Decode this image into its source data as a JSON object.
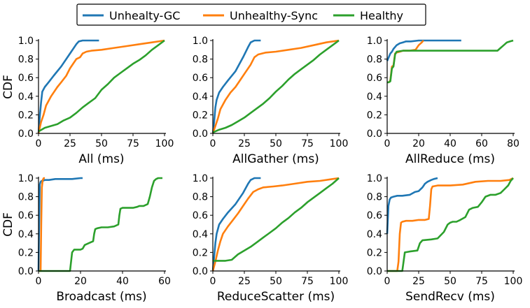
{
  "legend": [
    {
      "name": "Unhealty-GC",
      "color": "#1f77b4"
    },
    {
      "name": "Unhealthy-Sync",
      "color": "#ff7f0e"
    },
    {
      "name": "Healthy",
      "color": "#2ca02c"
    }
  ],
  "chart_data": [
    {
      "type": "line",
      "title": "",
      "xlabel": "All (ms)",
      "ylabel": "CDF",
      "xlim": [
        0,
        100
      ],
      "ylim": [
        0,
        1
      ],
      "xticks": [
        0,
        25,
        50,
        75,
        100
      ],
      "yticks": [
        0.0,
        0.2,
        0.4,
        0.6,
        0.8,
        1.0
      ],
      "show_ylabel": true,
      "series": [
        {
          "name": "Unhealty-GC",
          "x": [
            0,
            1,
            2,
            3,
            5,
            8,
            12,
            18,
            25,
            30,
            32,
            35,
            40,
            48
          ],
          "y": [
            0,
            0.18,
            0.33,
            0.45,
            0.5,
            0.55,
            0.62,
            0.72,
            0.86,
            0.96,
            0.99,
            1.0,
            1.0,
            1.0
          ]
        },
        {
          "name": "Unhealthy-Sync",
          "x": [
            0,
            2,
            4,
            6,
            10,
            15,
            18,
            22,
            25,
            28,
            30,
            33,
            35,
            38,
            42,
            50,
            60,
            70,
            80,
            90,
            100
          ],
          "y": [
            0,
            0.12,
            0.2,
            0.3,
            0.4,
            0.5,
            0.55,
            0.62,
            0.7,
            0.76,
            0.8,
            0.82,
            0.86,
            0.88,
            0.89,
            0.9,
            0.92,
            0.94,
            0.96,
            0.98,
            1.0
          ]
        },
        {
          "name": "Healthy",
          "x": [
            0,
            5,
            10,
            15,
            20,
            25,
            30,
            35,
            40,
            45,
            50,
            55,
            60,
            65,
            70,
            75,
            80,
            85,
            90,
            95,
            100
          ],
          "y": [
            0.02,
            0.06,
            0.08,
            0.1,
            0.14,
            0.17,
            0.22,
            0.28,
            0.33,
            0.38,
            0.47,
            0.53,
            0.6,
            0.65,
            0.7,
            0.75,
            0.79,
            0.84,
            0.9,
            0.95,
            1.0
          ]
        }
      ]
    },
    {
      "type": "line",
      "title": "",
      "xlabel": "AllGather (ms)",
      "ylabel": "CDF",
      "xlim": [
        0,
        100
      ],
      "ylim": [
        0,
        1
      ],
      "xticks": [
        0,
        25,
        50,
        75,
        100
      ],
      "yticks": [
        0.0,
        0.2,
        0.4,
        0.6,
        0.8,
        1.0
      ],
      "show_ylabel": false,
      "series": [
        {
          "name": "Unhealty-GC",
          "x": [
            0,
            1,
            2,
            3,
            5,
            8,
            12,
            18,
            24,
            28,
            30,
            33,
            38
          ],
          "y": [
            0,
            0.12,
            0.28,
            0.36,
            0.44,
            0.5,
            0.57,
            0.67,
            0.82,
            0.93,
            0.98,
            1.0,
            1.0
          ]
        },
        {
          "name": "Unhealthy-Sync",
          "x": [
            0,
            2,
            4,
            6,
            10,
            14,
            18,
            22,
            26,
            30,
            33,
            36,
            42,
            50,
            60,
            70,
            80,
            90,
            100
          ],
          "y": [
            0,
            0.08,
            0.16,
            0.26,
            0.36,
            0.44,
            0.5,
            0.58,
            0.66,
            0.74,
            0.82,
            0.85,
            0.87,
            0.88,
            0.9,
            0.92,
            0.95,
            0.98,
            1.0
          ]
        },
        {
          "name": "Healthy",
          "x": [
            0,
            5,
            10,
            15,
            20,
            25,
            30,
            35,
            40,
            45,
            50,
            55,
            60,
            65,
            70,
            75,
            80,
            85,
            90,
            95,
            100
          ],
          "y": [
            0.01,
            0.04,
            0.06,
            0.09,
            0.13,
            0.17,
            0.22,
            0.27,
            0.32,
            0.38,
            0.45,
            0.51,
            0.58,
            0.64,
            0.69,
            0.74,
            0.79,
            0.85,
            0.9,
            0.95,
            1.0
          ]
        }
      ]
    },
    {
      "type": "line",
      "title": "",
      "xlabel": "AllReduce (ms)",
      "ylabel": "CDF",
      "xlim": [
        0,
        80
      ],
      "ylim": [
        0,
        1
      ],
      "xticks": [
        0,
        20,
        40,
        60,
        80
      ],
      "yticks": [
        0.0,
        0.2,
        0.4,
        0.6,
        0.8,
        1.0
      ],
      "show_ylabel": false,
      "series": [
        {
          "name": "Unhealty-GC",
          "x": [
            0,
            0.5,
            1,
            2,
            3,
            4,
            5,
            6,
            8,
            10,
            12,
            15,
            20,
            30,
            40,
            47
          ],
          "y": [
            0.78,
            0.8,
            0.82,
            0.86,
            0.88,
            0.91,
            0.93,
            0.95,
            0.97,
            0.98,
            0.99,
            0.99,
            1.0,
            1.0,
            1.0,
            1.0
          ]
        },
        {
          "name": "Unhealthy-Sync",
          "x": [
            0,
            1,
            2,
            3,
            4,
            5,
            6,
            8,
            10,
            14,
            18,
            20,
            22,
            23
          ],
          "y": [
            0.55,
            0.55,
            0.57,
            0.72,
            0.73,
            0.86,
            0.87,
            0.88,
            0.89,
            0.89,
            0.9,
            0.95,
            0.98,
            1.0
          ]
        },
        {
          "name": "Healthy",
          "x": [
            0,
            1,
            2,
            3,
            4,
            5,
            6,
            10,
            20,
            40,
            60,
            70,
            72,
            74,
            76,
            78,
            80
          ],
          "y": [
            0.55,
            0.55,
            0.56,
            0.7,
            0.72,
            0.85,
            0.88,
            0.89,
            0.89,
            0.89,
            0.89,
            0.89,
            0.92,
            0.95,
            0.98,
            0.99,
            1.0
          ]
        }
      ]
    },
    {
      "type": "line",
      "title": "",
      "xlabel": "Broadcast (ms)",
      "ylabel": "CDF",
      "xlim": [
        0,
        60
      ],
      "ylim": [
        0,
        1
      ],
      "xticks": [
        0,
        20,
        40,
        60
      ],
      "yticks": [
        0.0,
        0.2,
        0.4,
        0.6,
        0.8,
        1.0
      ],
      "show_ylabel": true,
      "series": [
        {
          "name": "Unhealty-GC",
          "x": [
            0,
            0.3,
            0.6,
            1,
            1.5,
            2,
            3,
            5,
            8,
            12,
            16,
            20,
            21
          ],
          "y": [
            0,
            0.5,
            0.93,
            0.96,
            0.97,
            0.97,
            0.98,
            0.98,
            0.99,
            0.99,
            0.99,
            1.0,
            1.0
          ]
        },
        {
          "name": "Unhealthy-Sync",
          "x": [
            0,
            1,
            1.3,
            1.6,
            2,
            2.5,
            3
          ],
          "y": [
            0,
            0,
            0.5,
            0.9,
            0.98,
            1.0,
            1.0
          ]
        },
        {
          "name": "Healthy",
          "x": [
            0,
            14,
            15,
            15.5,
            16,
            17,
            19,
            20,
            21,
            22,
            24,
            26,
            26.5,
            27,
            28,
            30,
            33,
            36,
            38,
            38.5,
            39,
            40,
            42,
            45,
            47,
            48,
            50,
            52,
            53,
            54,
            55,
            56,
            57,
            59
          ],
          "y": [
            0,
            0,
            0,
            0.1,
            0.2,
            0.23,
            0.23,
            0.23,
            0.24,
            0.28,
            0.3,
            0.32,
            0.4,
            0.45,
            0.46,
            0.47,
            0.47,
            0.48,
            0.5,
            0.6,
            0.67,
            0.68,
            0.68,
            0.68,
            0.69,
            0.7,
            0.7,
            0.72,
            0.8,
            0.9,
            0.97,
            0.99,
            1.0,
            1.0
          ]
        }
      ]
    },
    {
      "type": "line",
      "title": "",
      "xlabel": "ReduceScatter (ms)",
      "ylabel": "CDF",
      "xlim": [
        0,
        100
      ],
      "ylim": [
        0,
        1
      ],
      "xticks": [
        0,
        25,
        50,
        75,
        100
      ],
      "yticks": [
        0.0,
        0.2,
        0.4,
        0.6,
        0.8,
        1.0
      ],
      "show_ylabel": false,
      "series": [
        {
          "name": "Unhealty-GC",
          "x": [
            0,
            1,
            2,
            3,
            5,
            8,
            12,
            18,
            24,
            28,
            30,
            33,
            38
          ],
          "y": [
            0,
            0.15,
            0.3,
            0.4,
            0.5,
            0.56,
            0.63,
            0.72,
            0.84,
            0.94,
            0.98,
            1.0,
            1.0
          ]
        },
        {
          "name": "Unhealthy-Sync",
          "x": [
            0,
            2,
            4,
            6,
            8,
            12,
            16,
            20,
            24,
            28,
            32,
            36,
            40,
            48,
            55,
            65,
            75,
            85,
            95,
            100
          ],
          "y": [
            0,
            0.1,
            0.22,
            0.32,
            0.4,
            0.48,
            0.55,
            0.62,
            0.7,
            0.78,
            0.85,
            0.88,
            0.9,
            0.91,
            0.92,
            0.94,
            0.96,
            0.97,
            0.99,
            1.0
          ]
        },
        {
          "name": "Healthy",
          "x": [
            0,
            5,
            10,
            15,
            20,
            25,
            30,
            35,
            40,
            45,
            50,
            55,
            60,
            65,
            70,
            75,
            80,
            85,
            90,
            95,
            100
          ],
          "y": [
            0.11,
            0.11,
            0.11,
            0.12,
            0.18,
            0.22,
            0.26,
            0.31,
            0.36,
            0.41,
            0.46,
            0.52,
            0.57,
            0.63,
            0.68,
            0.74,
            0.79,
            0.84,
            0.89,
            0.94,
            1.0
          ]
        }
      ]
    },
    {
      "type": "line",
      "title": "",
      "xlabel": "SendRecv (ms)",
      "ylabel": "CDF",
      "xlim": [
        0,
        100
      ],
      "ylim": [
        0,
        1
      ],
      "xticks": [
        0,
        25,
        50,
        75,
        100
      ],
      "yticks": [
        0.0,
        0.2,
        0.4,
        0.6,
        0.8,
        1.0
      ],
      "show_ylabel": false,
      "series": [
        {
          "name": "Unhealty-GC",
          "x": [
            0,
            0.5,
            1,
            2,
            3,
            5,
            8,
            12,
            18,
            22,
            25,
            28,
            30,
            32,
            35,
            37,
            40
          ],
          "y": [
            0.4,
            0.55,
            0.7,
            0.77,
            0.79,
            0.8,
            0.81,
            0.81,
            0.82,
            0.85,
            0.86,
            0.9,
            0.94,
            0.96,
            0.98,
            0.99,
            1.0
          ]
        },
        {
          "name": "Unhealthy-Sync",
          "x": [
            0,
            8,
            9,
            10,
            11,
            12,
            15,
            20,
            25,
            30,
            33,
            34,
            35,
            36,
            40,
            50,
            60,
            70,
            80,
            90,
            97,
            100
          ],
          "y": [
            0,
            0,
            0.1,
            0.4,
            0.52,
            0.53,
            0.54,
            0.54,
            0.55,
            0.55,
            0.56,
            0.7,
            0.88,
            0.91,
            0.92,
            0.92,
            0.93,
            0.96,
            0.97,
            0.97,
            0.98,
            1.0
          ]
        },
        {
          "name": "Healthy",
          "x": [
            0,
            12,
            13,
            14,
            18,
            24,
            26,
            28,
            35,
            40,
            45,
            48,
            50,
            52,
            55,
            58,
            62,
            65,
            68,
            72,
            75,
            78,
            82,
            86,
            90,
            93,
            96,
            98,
            100
          ],
          "y": [
            0,
            0,
            0.1,
            0.2,
            0.21,
            0.22,
            0.3,
            0.33,
            0.34,
            0.35,
            0.42,
            0.5,
            0.52,
            0.53,
            0.53,
            0.55,
            0.58,
            0.66,
            0.68,
            0.69,
            0.74,
            0.8,
            0.82,
            0.82,
            0.84,
            0.88,
            0.92,
            0.97,
            1.0
          ]
        }
      ]
    }
  ]
}
